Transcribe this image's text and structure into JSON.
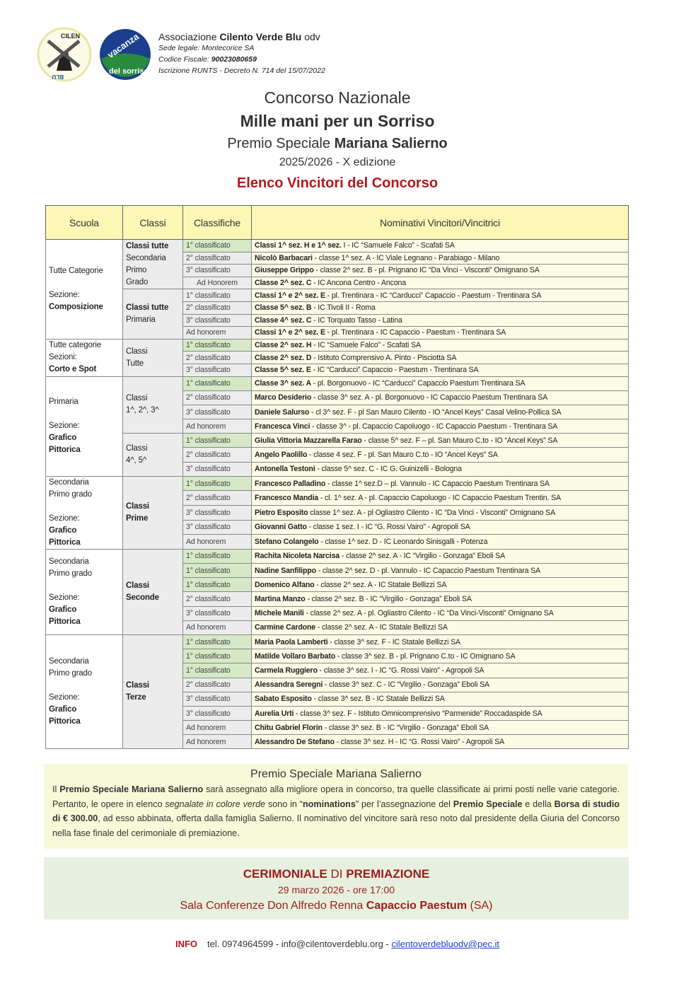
{
  "header": {
    "logos": [
      {
        "name": "cilento-verde-blu-logo",
        "text": "CILENTO VERDE BLU"
      },
      {
        "name": "la-vacanza-del-sorriso-logo",
        "text": "la vacanza del sorriso"
      }
    ],
    "assoc_prefix": "Associazione ",
    "assoc_name": "Cilento Verde Blu",
    "assoc_suffix": " odv",
    "sede": "Sede legale: Montecorice SA",
    "cf_label": "Codice Fiscale: ",
    "cf_value": "90023080659",
    "runts": "Iscrizione RUNTS - Decreto N. 714 del 15/07/2022"
  },
  "titles": {
    "line1": "Concorso Nazionale",
    "line2": "Mille mani per un Sorriso",
    "line3_prefix": "Premio Speciale ",
    "line3_bold": "Mariana Salierno",
    "line4": "2025/2026 - X edizione",
    "line5": "Elenco Vincitori del Concorso"
  },
  "colors": {
    "accent_red": "#b3181e",
    "nomination_green": "#d6e9c6",
    "header_yellow": "#fdf7b6"
  },
  "table": {
    "headers": [
      "Scuola",
      "Classi",
      "Classifiche",
      "Nominativi Vincitori/Vincitrici"
    ],
    "groups": [
      {
        "size": "small",
        "school": [
          {
            "t": "Tutte Categorie"
          },
          {
            "t": ""
          },
          {
            "t": "Sezione:"
          },
          {
            "t": "Composizione",
            "b": true
          }
        ],
        "subgroups": [
          {
            "classi": [
              {
                "t": "Classi tutte",
                "b": true
              },
              {
                "t": "Secondaria"
              },
              {
                "t": "Primo"
              },
              {
                "t": "Grado"
              }
            ],
            "rows": [
              {
                "rank": "1° classificato",
                "name": "Classi 1^ sez. H e 1^ sez.",
                "detail": " I - IC “Samuele Falco” - Scafati SA",
                "nominated": true
              },
              {
                "rank": "2° classificato",
                "name": "Nicolò Barbacari",
                "detail": " - classe 1^ sez. A - IC Viale Legnano - Parabiago - Milano"
              },
              {
                "rank": "3° classificato",
                "name": "Giuseppe Grippo",
                "detail": " - classe 2^ sez. B - pl. Prignano IC “Da Vinci - Visconti” Omignano SA"
              },
              {
                "rank": "Ad Honorem",
                "name": "Classe 2^ sez. C",
                "detail": " - IC Ancona Centro - Ancona"
              }
            ]
          },
          {
            "classi": [
              {
                "t": "Classi tutte",
                "b": true
              },
              {
                "t": "Primaria"
              }
            ],
            "rows": [
              {
                "rank": "1° classificato",
                "name": "Classi 1^ e 2^ sez. E",
                "detail": " - pl. Trentinara - IC “Carducci” Capaccio - Paestum - Trentinara SA"
              },
              {
                "rank": "2° classificato",
                "name": "Classe 5^ sez. B",
                "detail": " - IC Tivoli II - Roma"
              },
              {
                "rank": "3° classificato",
                "name": "Classe 4^ sez. C",
                "detail": " - IC Torquato Tasso - Latina"
              },
              {
                "rank": "Ad honorem",
                "name": "Classi 1^ e 2^ sez. E",
                "detail": " - pl. Trentinara - IC Capaccio - Paestum - Trentinara SA"
              }
            ]
          }
        ]
      },
      {
        "size": "small",
        "school": [
          {
            "t": "Tutte categorie"
          },
          {
            "t": "Sezioni:"
          },
          {
            "t": "Corto e Spot",
            "b": true
          }
        ],
        "subgroups": [
          {
            "classi": [
              {
                "t": "Classi"
              },
              {
                "t": "Tutte"
              }
            ],
            "rows": [
              {
                "rank": "1° classificato",
                "name": "Classe 2^ sez. H",
                "detail": " - IC “Samuele Falco” - Scafati SA",
                "nominated": true
              },
              {
                "rank": "2° classificato",
                "name": "Classe 2^ sez. D",
                "detail": " - Istituto Comprensivo A. Pinto - Pisciotta SA"
              },
              {
                "rank": "3° classificato",
                "name": "Classe 5^ sez. E",
                "detail": " - IC “Carducci” Capaccio - Paestum - Trentinara SA"
              }
            ]
          }
        ]
      },
      {
        "size": "big",
        "school": [
          {
            "t": "Primaria"
          },
          {
            "t": ""
          },
          {
            "t": "Sezione:"
          },
          {
            "t": "Grafico",
            "b": true
          },
          {
            "t": "Pittorica",
            "b": true
          }
        ],
        "subgroups": [
          {
            "classi": [
              {
                "t": "Classi"
              },
              {
                "t": "1^, 2^, 3^"
              }
            ],
            "rows": [
              {
                "rank": "1° classificato",
                "name": "Classe 3^ sez. A",
                "detail": " - pl. Borgonuovo - IC “Carducci” Capaccio Paestum Trentinara SA",
                "nominated": true
              },
              {
                "rank": "2° classificato",
                "name": "Marco Desiderio",
                "detail": " - classe 3^ sez. A - pl. Borgonuovo - IC Capaccio Paestum Trentinara SA"
              },
              {
                "rank": "3° classificato",
                "name": "Daniele Salurso",
                "detail": " - cl 3^ sez. F - pl San Mauro Cilento - IO “Ancel Keys” Casal Velino-Pollica SA"
              },
              {
                "rank": "Ad honorem",
                "name": "Francesca Vinci",
                "detail": " - classe 3^ - pl. Capaccio Capoluogo - IC Capaccio Paestum - Trentinara SA"
              }
            ]
          },
          {
            "classi": [
              {
                "t": "Classi"
              },
              {
                "t": "4^, 5^"
              }
            ],
            "rows": [
              {
                "rank": "1° classificato",
                "name": "Giulia Vittoria Mazzarella Farao",
                "detail": " - classe 5^ sez. F – pl. San Mauro C.to - IO “Ancel Keys” SA",
                "nominated": true
              },
              {
                "rank": "2° classificato",
                "name": "Angelo Paolillo",
                "detail": " - classe 4 sez. F - pl. San Mauro C.to - IO “Ancel Keys” SA"
              },
              {
                "rank": "3° classificato",
                "name": "Antonella Testoni",
                "detail": " - classe 5^ sez. C - IC G. Guinizelli - Bologna"
              }
            ]
          }
        ]
      },
      {
        "size": "big",
        "school": [
          {
            "t": "Secondaria"
          },
          {
            "t": "Primo grado"
          },
          {
            "t": ""
          },
          {
            "t": "Sezione:"
          },
          {
            "t": "Grafico",
            "b": true
          },
          {
            "t": "Pittorica",
            "b": true
          }
        ],
        "subgroups": [
          {
            "classi": [
              {
                "t": "Classi",
                "b": true
              },
              {
                "t": "Prime",
                "b": true
              }
            ],
            "rows": [
              {
                "rank": "1° classificato",
                "name": "Francesco Palladino",
                "detail": " - classe 1^ sez.D – pl. Vannulo - IC Capaccio Paestum Trentinara SA",
                "nominated": true
              },
              {
                "rank": "2° classificato",
                "name": "Francesco Mandia",
                "detail": " - cl. 1^ sez. A - pl. Capaccio Capoluogo - IC Capaccio Paestum Trentin. SA"
              },
              {
                "rank": "3° classificato",
                "name": "Pietro Esposito",
                "detail": " classe 1^ sez. A - pl Ogliastro Cilento - IC “Da Vinci - Visconti” Omignano SA"
              },
              {
                "rank": "3° classificato",
                "name": "Giovanni Gatto",
                "detail": " - classe 1 sez. I - IC “G. Rossi Vairo” - Agropoli SA"
              },
              {
                "rank": "Ad honorem",
                "name": "Stefano Colangelo",
                "detail": " - classe 1^ sez. D - IC Leonardo Sinisgalli - Potenza"
              }
            ]
          }
        ]
      },
      {
        "size": "big",
        "school": [
          {
            "t": "Secondaria"
          },
          {
            "t": "Primo grado"
          },
          {
            "t": ""
          },
          {
            "t": "Sezione:"
          },
          {
            "t": "Grafico",
            "b": true
          },
          {
            "t": "Pittorica",
            "b": true
          }
        ],
        "subgroups": [
          {
            "classi": [
              {
                "t": "Classi",
                "b": true
              },
              {
                "t": "Seconde",
                "b": true
              }
            ],
            "rows": [
              {
                "rank": "1° classificato",
                "name": "Rachita Nicoleta Narcisa",
                "detail": " - classe 2^ sez. A - IC “Virgilio - Gonzaga” Eboli SA",
                "nominated": true
              },
              {
                "rank": "1° classificato",
                "name": "Nadine Sanfilippo",
                "detail": " - classe 2^ sez. D - pl. Vannulo - IC Capaccio Paestum Trentinara SA",
                "nominated": true
              },
              {
                "rank": "1° classificato",
                "name": "Domenico Alfano",
                "detail": " - classe 2^ sez. A - IC Statale Bellizzi SA",
                "nominated": true
              },
              {
                "rank": "2° classificato",
                "name": "Martina Manzo",
                "detail": " - classe 2^ sez. B - IC “Virgilio - Gonzaga” Eboli SA"
              },
              {
                "rank": "3° classificato",
                "name": "Michele Manili",
                "detail": " - classe 2^ sez. A - pl. Ogliastro Cilento - IC “Da Vinci-Visconti” Omignano SA"
              },
              {
                "rank": "Ad honorem",
                "name": "Carmine Cardone",
                "detail": " - classe 2^ sez. A - IC Statale Bellizzi SA"
              }
            ]
          }
        ]
      },
      {
        "size": "big",
        "school": [
          {
            "t": "Secondaria"
          },
          {
            "t": "Primo grado"
          },
          {
            "t": ""
          },
          {
            "t": "Sezione:"
          },
          {
            "t": "Grafico",
            "b": true
          },
          {
            "t": "Pittorica",
            "b": true
          }
        ],
        "subgroups": [
          {
            "classi": [
              {
                "t": "Classi",
                "b": true
              },
              {
                "t": "Terze",
                "b": true
              }
            ],
            "rows": [
              {
                "rank": "1° classificato",
                "name": "Maria Paola Lamberti",
                "detail": " - classe 3^ sez. F - IC Statale Bellizzi SA",
                "nominated": true
              },
              {
                "rank": "1° classificato",
                "name": "Matilde Vollaro Barbato",
                "detail": " - classe 3^ sez. B - pl. Prignano C.to - IC Omignano SA",
                "nominated": true
              },
              {
                "rank": "1° classificato",
                "name": "Carmela Ruggiero",
                "detail": " - classe 3^ sez. I - IC “G. Rossi Vairo” - Agropoli SA",
                "nominated": true
              },
              {
                "rank": "2° classificato",
                "name": "Alessandra Seregni",
                "detail": " - classe 3^ sez. C - IC “Virgilio - Gonzaga” Eboli SA"
              },
              {
                "rank": "3° classificato",
                "name": "Sabato Esposito",
                "detail": " - classe 3^ sez. B - IC Statale Bellizzi SA"
              },
              {
                "rank": "3° classificato",
                "name": "Aurelia Urti",
                "detail": " - classe 3^ sez. F - Istituto Omnicomprensivo “Parmenide” Roccadaspide SA"
              },
              {
                "rank": "Ad honorem",
                "name": "Chitu Gabriel Florin",
                "detail": " - classe 3^ sez. B - IC “Virgilio - Gonzaga” Eboli SA"
              },
              {
                "rank": "Ad honorem",
                "name": "Alessandro De Stefano",
                "detail": " - classe 3^ sez. H - IC “G. Rossi Vairo” - Agropoli SA"
              }
            ]
          }
        ]
      }
    ]
  },
  "premio": {
    "title": "Premio Speciale Mariana Salierno",
    "p1": "Il ",
    "p2": "Premio Speciale Mariana Salierno",
    "p3": " sarà assegnato alla migliore opera in concorso, tra quelle classificate ai primi posti nelle varie categorie. Pertanto, le opere in elenco ",
    "p4": "segnalate in colore verde",
    "p5": " sono in “",
    "p6": "nominations",
    "p7": "” per l’assegnazione del ",
    "p8": "Premio Speciale",
    "p9": " e della ",
    "p10": "Borsa di studio di € 300.00",
    "p11": ", ad esso abbinata, offerta dalla famiglia Salierno. Il nominativo del vincitore sarà reso noto dal presidente della Giuria del Concorso nella fase finale del cerimoniale di premiazione."
  },
  "cerimoniale": {
    "a": "CERIMONIALE",
    "b": " DI ",
    "c": "PREMIAZIONE",
    "date": "29 marzo 2026 - ore 17:00",
    "venue_prefix": "Sala Conferenze Don Alfredo Renna ",
    "venue_bold": "Capaccio Paestum",
    "venue_suffix": " (SA)"
  },
  "info": {
    "label": "INFO",
    "text": "tel. 0974964599 - info@cilentoverdeblu.org - ",
    "pec": "cilentoverdebluodv@pec.it"
  }
}
